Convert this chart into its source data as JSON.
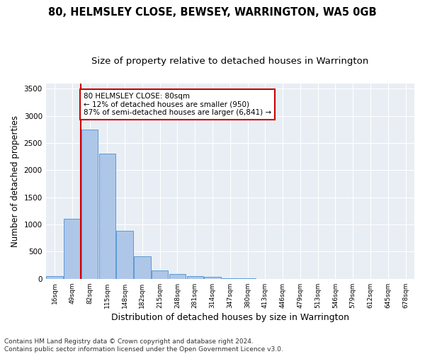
{
  "title1": "80, HELMSLEY CLOSE, BEWSEY, WARRINGTON, WA5 0GB",
  "title2": "Size of property relative to detached houses in Warrington",
  "xlabel": "Distribution of detached houses by size in Warrington",
  "ylabel": "Number of detached properties",
  "categories": [
    "16sqm",
    "49sqm",
    "82sqm",
    "115sqm",
    "148sqm",
    "182sqm",
    "215sqm",
    "248sqm",
    "281sqm",
    "314sqm",
    "347sqm",
    "380sqm",
    "413sqm",
    "446sqm",
    "479sqm",
    "513sqm",
    "546sqm",
    "579sqm",
    "612sqm",
    "645sqm",
    "678sqm"
  ],
  "values": [
    50,
    1100,
    2750,
    2300,
    880,
    420,
    160,
    90,
    55,
    35,
    15,
    5,
    2,
    0,
    0,
    0,
    0,
    0,
    0,
    0,
    0
  ],
  "bar_color": "#aec6e8",
  "bar_edge_color": "#5b9bd5",
  "vline_color": "#cc0000",
  "annotation_text": "80 HELMSLEY CLOSE: 80sqm\n← 12% of detached houses are smaller (950)\n87% of semi-detached houses are larger (6,841) →",
  "annotation_box_color": "#ffffff",
  "annotation_box_edge": "#cc0000",
  "ylim": [
    0,
    3600
  ],
  "yticks": [
    0,
    500,
    1000,
    1500,
    2000,
    2500,
    3000,
    3500
  ],
  "background_color": "#e8eef4",
  "footer": "Contains HM Land Registry data © Crown copyright and database right 2024.\nContains public sector information licensed under the Open Government Licence v3.0.",
  "title1_fontsize": 10.5,
  "title2_fontsize": 9.5,
  "xlabel_fontsize": 9,
  "ylabel_fontsize": 8.5,
  "footer_fontsize": 6.5
}
